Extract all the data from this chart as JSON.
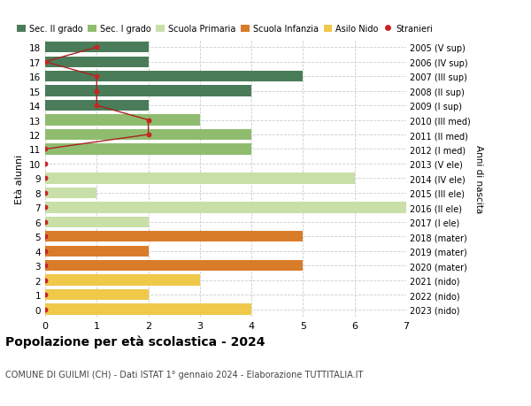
{
  "ages": [
    18,
    17,
    16,
    15,
    14,
    13,
    12,
    11,
    10,
    9,
    8,
    7,
    6,
    5,
    4,
    3,
    2,
    1,
    0
  ],
  "years": [
    "2005 (V sup)",
    "2006 (IV sup)",
    "2007 (III sup)",
    "2008 (II sup)",
    "2009 (I sup)",
    "2010 (III med)",
    "2011 (II med)",
    "2012 (I med)",
    "2013 (V ele)",
    "2014 (IV ele)",
    "2015 (III ele)",
    "2016 (II ele)",
    "2017 (I ele)",
    "2018 (mater)",
    "2019 (mater)",
    "2020 (mater)",
    "2021 (nido)",
    "2022 (nido)",
    "2023 (nido)"
  ],
  "bar_values": [
    2,
    2,
    5,
    4,
    2,
    3,
    4,
    4,
    0,
    6,
    1,
    7,
    2,
    5,
    2,
    5,
    3,
    2,
    4
  ],
  "bar_colors": [
    "#4a7c59",
    "#4a7c59",
    "#4a7c59",
    "#4a7c59",
    "#4a7c59",
    "#8fbc6e",
    "#8fbc6e",
    "#8fbc6e",
    "#c8dfa8",
    "#c8dfa8",
    "#c8dfa8",
    "#c8dfa8",
    "#c8dfa8",
    "#d97c2a",
    "#d97c2a",
    "#d97c2a",
    "#f0c84a",
    "#f0c84a",
    "#f0c84a"
  ],
  "stranieri_x": [
    1,
    0,
    1,
    1,
    1,
    2,
    2,
    0,
    0,
    0,
    0,
    0,
    0,
    0,
    0,
    0,
    0,
    0,
    0
  ],
  "legend_labels": [
    "Sec. II grado",
    "Sec. I grado",
    "Scuola Primaria",
    "Scuola Infanzia",
    "Asilo Nido",
    "Stranieri"
  ],
  "legend_colors": [
    "#4a7c59",
    "#8fbc6e",
    "#c8dfa8",
    "#d97c2a",
    "#f0c84a",
    "#cc2222"
  ],
  "title": "Popolazione per età scolastica - 2024",
  "subtitle": "COMUNE DI GUILMI (CH) - Dati ISTAT 1° gennaio 2024 - Elaborazione TUTTITALIA.IT",
  "ylabel": "Età alunni",
  "right_ylabel": "Anni di nascita",
  "xlim": [
    0,
    7
  ],
  "background_color": "#ffffff",
  "grid_color": "#cccccc",
  "bar_height": 0.75
}
